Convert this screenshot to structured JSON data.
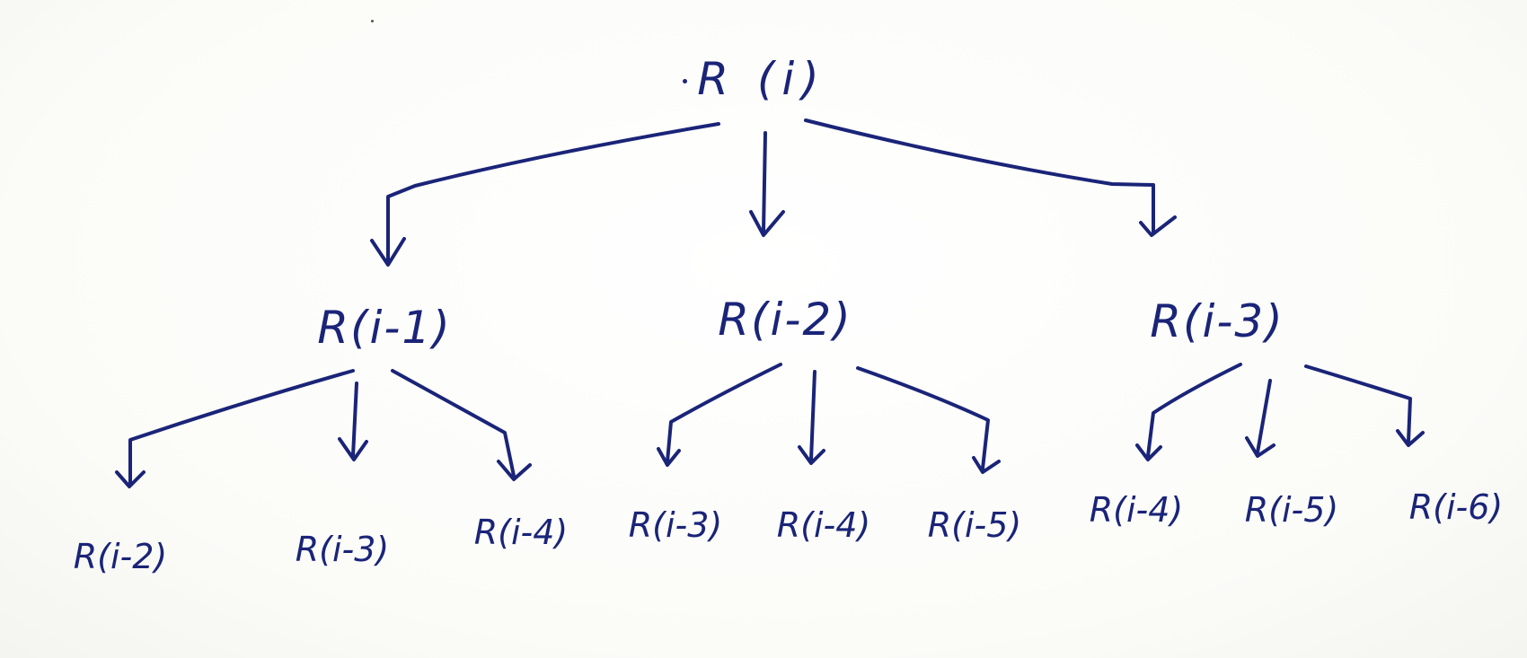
{
  "diagram": {
    "type": "recursion-tree",
    "ink_color": "#1a2478",
    "background": "#fdfdfb",
    "root": {
      "label": "R (i)"
    },
    "level1": [
      {
        "label": "R(i-1)"
      },
      {
        "label": "R(i-2)"
      },
      {
        "label": "R(i-3)"
      }
    ],
    "level2": [
      {
        "label": "R(i-2)",
        "parent": "R(i-1)"
      },
      {
        "label": "R(i-3)",
        "parent": "R(i-1)"
      },
      {
        "label": "R(i-4)",
        "parent": "R(i-1)"
      },
      {
        "label": "R(i-3)",
        "parent": "R(i-2)"
      },
      {
        "label": "R(i-4)",
        "parent": "R(i-2)"
      },
      {
        "label": "R(i-5)",
        "parent": "R(i-2)"
      },
      {
        "label": "R(i-4)",
        "parent": "R(i-3)"
      },
      {
        "label": "R(i-5)",
        "parent": "R(i-3)"
      },
      {
        "label": "R(i-6)",
        "parent": "R(i-3)"
      }
    ]
  }
}
